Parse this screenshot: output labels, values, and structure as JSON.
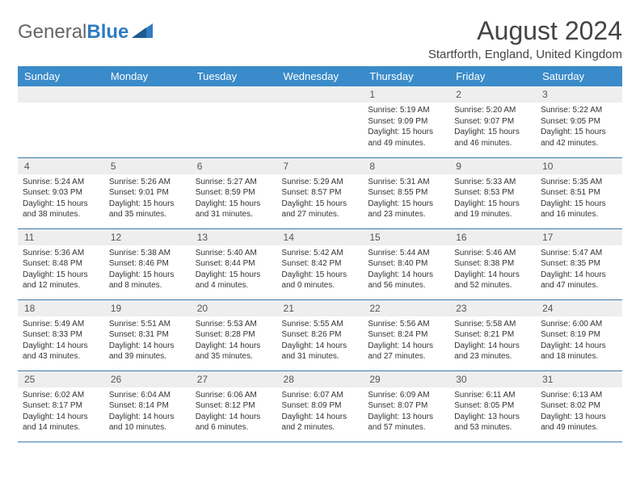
{
  "logo": {
    "gray": "General",
    "blue": "Blue"
  },
  "title": "August 2024",
  "location": "Startforth, England, United Kingdom",
  "header_bg": "#3a8bc9",
  "header_fg": "#ffffff",
  "daynum_bg": "#eeeeee",
  "rule_color": "#3a7bb0",
  "day_names": [
    "Sunday",
    "Monday",
    "Tuesday",
    "Wednesday",
    "Thursday",
    "Friday",
    "Saturday"
  ],
  "weeks": [
    [
      null,
      null,
      null,
      null,
      {
        "n": "1",
        "sr": "5:19 AM",
        "ss": "9:09 PM",
        "dl": "15 hours and 49 minutes."
      },
      {
        "n": "2",
        "sr": "5:20 AM",
        "ss": "9:07 PM",
        "dl": "15 hours and 46 minutes."
      },
      {
        "n": "3",
        "sr": "5:22 AM",
        "ss": "9:05 PM",
        "dl": "15 hours and 42 minutes."
      }
    ],
    [
      {
        "n": "4",
        "sr": "5:24 AM",
        "ss": "9:03 PM",
        "dl": "15 hours and 38 minutes."
      },
      {
        "n": "5",
        "sr": "5:26 AM",
        "ss": "9:01 PM",
        "dl": "15 hours and 35 minutes."
      },
      {
        "n": "6",
        "sr": "5:27 AM",
        "ss": "8:59 PM",
        "dl": "15 hours and 31 minutes."
      },
      {
        "n": "7",
        "sr": "5:29 AM",
        "ss": "8:57 PM",
        "dl": "15 hours and 27 minutes."
      },
      {
        "n": "8",
        "sr": "5:31 AM",
        "ss": "8:55 PM",
        "dl": "15 hours and 23 minutes."
      },
      {
        "n": "9",
        "sr": "5:33 AM",
        "ss": "8:53 PM",
        "dl": "15 hours and 19 minutes."
      },
      {
        "n": "10",
        "sr": "5:35 AM",
        "ss": "8:51 PM",
        "dl": "15 hours and 16 minutes."
      }
    ],
    [
      {
        "n": "11",
        "sr": "5:36 AM",
        "ss": "8:48 PM",
        "dl": "15 hours and 12 minutes."
      },
      {
        "n": "12",
        "sr": "5:38 AM",
        "ss": "8:46 PM",
        "dl": "15 hours and 8 minutes."
      },
      {
        "n": "13",
        "sr": "5:40 AM",
        "ss": "8:44 PM",
        "dl": "15 hours and 4 minutes."
      },
      {
        "n": "14",
        "sr": "5:42 AM",
        "ss": "8:42 PM",
        "dl": "15 hours and 0 minutes."
      },
      {
        "n": "15",
        "sr": "5:44 AM",
        "ss": "8:40 PM",
        "dl": "14 hours and 56 minutes."
      },
      {
        "n": "16",
        "sr": "5:46 AM",
        "ss": "8:38 PM",
        "dl": "14 hours and 52 minutes."
      },
      {
        "n": "17",
        "sr": "5:47 AM",
        "ss": "8:35 PM",
        "dl": "14 hours and 47 minutes."
      }
    ],
    [
      {
        "n": "18",
        "sr": "5:49 AM",
        "ss": "8:33 PM",
        "dl": "14 hours and 43 minutes."
      },
      {
        "n": "19",
        "sr": "5:51 AM",
        "ss": "8:31 PM",
        "dl": "14 hours and 39 minutes."
      },
      {
        "n": "20",
        "sr": "5:53 AM",
        "ss": "8:28 PM",
        "dl": "14 hours and 35 minutes."
      },
      {
        "n": "21",
        "sr": "5:55 AM",
        "ss": "8:26 PM",
        "dl": "14 hours and 31 minutes."
      },
      {
        "n": "22",
        "sr": "5:56 AM",
        "ss": "8:24 PM",
        "dl": "14 hours and 27 minutes."
      },
      {
        "n": "23",
        "sr": "5:58 AM",
        "ss": "8:21 PM",
        "dl": "14 hours and 23 minutes."
      },
      {
        "n": "24",
        "sr": "6:00 AM",
        "ss": "8:19 PM",
        "dl": "14 hours and 18 minutes."
      }
    ],
    [
      {
        "n": "25",
        "sr": "6:02 AM",
        "ss": "8:17 PM",
        "dl": "14 hours and 14 minutes."
      },
      {
        "n": "26",
        "sr": "6:04 AM",
        "ss": "8:14 PM",
        "dl": "14 hours and 10 minutes."
      },
      {
        "n": "27",
        "sr": "6:06 AM",
        "ss": "8:12 PM",
        "dl": "14 hours and 6 minutes."
      },
      {
        "n": "28",
        "sr": "6:07 AM",
        "ss": "8:09 PM",
        "dl": "14 hours and 2 minutes."
      },
      {
        "n": "29",
        "sr": "6:09 AM",
        "ss": "8:07 PM",
        "dl": "13 hours and 57 minutes."
      },
      {
        "n": "30",
        "sr": "6:11 AM",
        "ss": "8:05 PM",
        "dl": "13 hours and 53 minutes."
      },
      {
        "n": "31",
        "sr": "6:13 AM",
        "ss": "8:02 PM",
        "dl": "13 hours and 49 minutes."
      }
    ]
  ],
  "labels": {
    "sunrise": "Sunrise:",
    "sunset": "Sunset:",
    "daylight": "Daylight:"
  }
}
